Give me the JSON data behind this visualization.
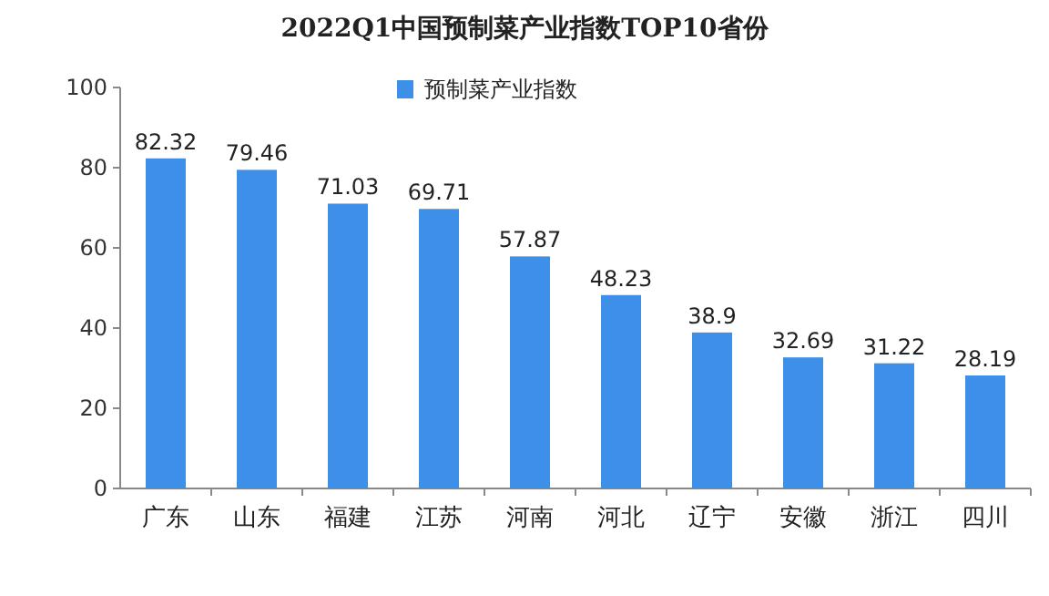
{
  "chart_data": {
    "type": "bar",
    "title": "2022Q1中国预制菜产业指数TOP10省份",
    "categories": [
      "广东",
      "山东",
      "福建",
      "江苏",
      "河南",
      "河北",
      "辽宁",
      "安徽",
      "浙江",
      "四川"
    ],
    "series": [
      {
        "name": "预制菜产业指数",
        "color": "#3d8fe8",
        "values": [
          82.32,
          79.46,
          71.03,
          69.71,
          57.87,
          48.23,
          38.9,
          32.69,
          31.22,
          28.19
        ]
      }
    ],
    "ylim": [
      0,
      100
    ],
    "yticks": [
      0,
      20,
      40,
      60,
      80,
      100
    ],
    "legend": "top",
    "data_labels": true,
    "grid": false
  }
}
